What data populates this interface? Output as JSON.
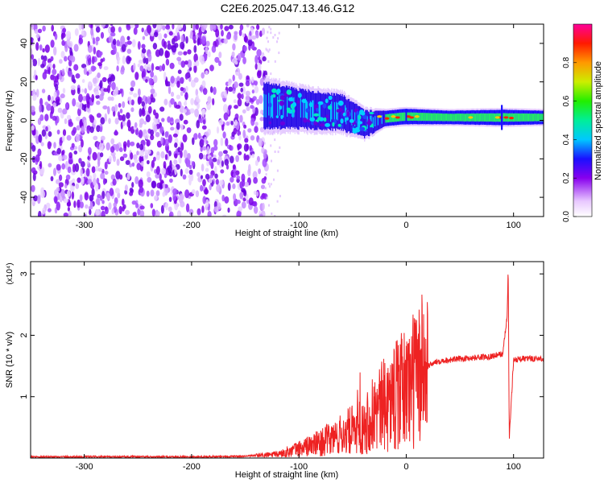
{
  "title": "C2E6.2025.047.13.46.G12",
  "chart_data": [
    {
      "type": "heatmap",
      "xlabel": "Height of straight line (km)",
      "ylabel": "Frequency (Hz)",
      "xlim": [
        -350,
        128
      ],
      "ylim": [
        -50,
        50
      ],
      "xticks": [
        -300,
        -200,
        -100,
        0,
        100
      ],
      "yticks": [
        -40,
        -20,
        0,
        20,
        40
      ],
      "colorbar": {
        "label": "Normalized spectral amplitude",
        "range": [
          0,
          1
        ],
        "ticks": [
          "0.0",
          "0.2",
          "0.4",
          "0.6",
          "0.8"
        ]
      },
      "noise_region_xmax": -133,
      "signal_band": [
        {
          "x": -133,
          "center": 8,
          "halfwidth": 12
        },
        {
          "x": -100,
          "center": 6,
          "halfwidth": 10
        },
        {
          "x": -60,
          "center": 4,
          "halfwidth": 9
        },
        {
          "x": -40,
          "center": -2,
          "halfwidth": 7
        },
        {
          "x": -20,
          "center": 1,
          "halfwidth": 4
        },
        {
          "x": 0,
          "center": 2,
          "halfwidth": 4
        },
        {
          "x": 40,
          "center": 1.5,
          "halfwidth": 3.5
        },
        {
          "x": 90,
          "center": 1.5,
          "halfwidth": 4
        },
        {
          "x": 128,
          "center": 1.5,
          "halfwidth": 3.5
        }
      ]
    },
    {
      "type": "line",
      "xlabel": "Height of straight line (km)",
      "ylabel": "SNR (10 * v/v)",
      "yscale_label": "(x10⁴)",
      "xlim": [
        -350,
        128
      ],
      "ylim": [
        0,
        3.2
      ],
      "xticks": [
        -300,
        -200,
        -100,
        0,
        100
      ],
      "yticks": [
        1,
        2,
        3
      ],
      "series": [
        {
          "color": "#ee2222",
          "x": [
            -350,
            -300,
            -250,
            -200,
            -150,
            -120,
            -100,
            -80,
            -60,
            -40,
            -25,
            -10,
            0,
            10,
            20,
            30,
            40,
            60,
            80,
            90,
            94,
            95,
            96,
            100,
            110,
            128
          ],
          "y": [
            0.02,
            0.02,
            0.02,
            0.02,
            0.03,
            0.06,
            0.15,
            0.25,
            0.38,
            0.55,
            0.8,
            1.0,
            1.15,
            1.35,
            1.5,
            1.58,
            1.6,
            1.63,
            1.66,
            1.7,
            2.3,
            3.1,
            0.3,
            1.6,
            1.62,
            1.62
          ]
        }
      ]
    }
  ]
}
